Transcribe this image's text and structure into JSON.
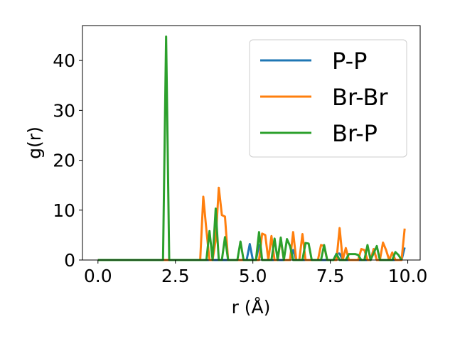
{
  "chart_data": {
    "type": "line",
    "xlabel": "r (Å)",
    "ylabel": "g(r)",
    "xlim": [
      -0.5,
      10.4
    ],
    "ylim": [
      0,
      47
    ],
    "xticks": [
      0.0,
      2.5,
      5.0,
      7.5,
      10.0
    ],
    "xtick_labels": [
      "0.0",
      "2.5",
      "5.0",
      "7.5",
      "10.0"
    ],
    "yticks": [
      0,
      10,
      20,
      30,
      40
    ],
    "ytick_labels": [
      "0",
      "10",
      "20",
      "30",
      "40"
    ],
    "grid": false,
    "legend_position": "top-right",
    "x_step": 0.1,
    "series": [
      {
        "name": "P-P",
        "color": "#1f77b4",
        "points": [
          [
            0.0,
            0
          ],
          [
            4.7,
            0
          ],
          [
            4.8,
            0
          ],
          [
            4.9,
            3.2
          ],
          [
            5.0,
            0
          ],
          [
            5.1,
            0
          ],
          [
            5.2,
            3.0
          ],
          [
            5.3,
            0
          ],
          [
            6.2,
            0
          ],
          [
            6.3,
            2.0
          ],
          [
            6.4,
            0
          ],
          [
            7.6,
            0
          ],
          [
            7.7,
            1.3
          ],
          [
            7.8,
            1.3
          ],
          [
            7.9,
            0
          ],
          [
            8.8,
            0
          ],
          [
            8.9,
            2.2
          ],
          [
            9.0,
            0
          ],
          [
            9.8,
            0
          ],
          [
            9.9,
            2.5
          ]
        ]
      },
      {
        "name": "Br-Br",
        "color": "#ff7f0e",
        "points": [
          [
            0.0,
            0
          ],
          [
            3.3,
            0
          ],
          [
            3.4,
            12.7
          ],
          [
            3.5,
            6.0
          ],
          [
            3.6,
            0
          ],
          [
            3.7,
            0
          ],
          [
            3.8,
            4.0
          ],
          [
            3.9,
            14.5
          ],
          [
            4.0,
            9.0
          ],
          [
            4.1,
            8.7
          ],
          [
            4.2,
            0
          ],
          [
            5.2,
            0
          ],
          [
            5.3,
            5.3
          ],
          [
            5.4,
            5.0
          ],
          [
            5.5,
            0
          ],
          [
            5.6,
            4.8
          ],
          [
            5.7,
            0
          ],
          [
            5.8,
            0
          ],
          [
            5.9,
            4.2
          ],
          [
            6.0,
            0
          ],
          [
            6.2,
            0
          ],
          [
            6.3,
            5.6
          ],
          [
            6.4,
            0
          ],
          [
            6.5,
            0
          ],
          [
            6.6,
            5.2
          ],
          [
            6.7,
            0
          ],
          [
            7.1,
            0
          ],
          [
            7.2,
            3.0
          ],
          [
            7.3,
            2.8
          ],
          [
            7.4,
            0
          ],
          [
            7.7,
            0
          ],
          [
            7.8,
            6.4
          ],
          [
            7.9,
            0
          ],
          [
            8.0,
            2.4
          ],
          [
            8.1,
            0
          ],
          [
            8.4,
            0
          ],
          [
            8.5,
            2.2
          ],
          [
            8.6,
            2.0
          ],
          [
            8.7,
            0
          ],
          [
            8.8,
            0
          ],
          [
            8.9,
            2.2
          ],
          [
            9.0,
            0
          ],
          [
            9.1,
            0
          ],
          [
            9.2,
            3.5
          ],
          [
            9.3,
            2.0
          ],
          [
            9.4,
            0
          ],
          [
            9.5,
            1.5
          ],
          [
            9.6,
            0
          ],
          [
            9.8,
            0
          ],
          [
            9.9,
            6.3
          ]
        ]
      },
      {
        "name": "Br-P",
        "color": "#2ca02c",
        "points": [
          [
            0.0,
            0
          ],
          [
            2.1,
            0
          ],
          [
            2.2,
            44.8
          ],
          [
            2.3,
            0
          ],
          [
            3.5,
            0
          ],
          [
            3.6,
            5.8
          ],
          [
            3.7,
            0
          ],
          [
            3.8,
            10.3
          ],
          [
            3.9,
            0
          ],
          [
            4.0,
            0
          ],
          [
            4.1,
            4.6
          ],
          [
            4.2,
            0
          ],
          [
            4.5,
            0
          ],
          [
            4.6,
            3.7
          ],
          [
            4.7,
            0
          ],
          [
            5.1,
            0
          ],
          [
            5.2,
            5.6
          ],
          [
            5.3,
            0
          ],
          [
            5.6,
            0
          ],
          [
            5.7,
            4.3
          ],
          [
            5.8,
            0
          ],
          [
            5.9,
            4.5
          ],
          [
            6.0,
            0
          ],
          [
            6.1,
            4.2
          ],
          [
            6.2,
            2.8
          ],
          [
            6.3,
            0
          ],
          [
            6.6,
            0
          ],
          [
            6.7,
            3.4
          ],
          [
            6.8,
            3.3
          ],
          [
            6.9,
            0
          ],
          [
            7.2,
            0
          ],
          [
            7.3,
            3.0
          ],
          [
            7.4,
            0
          ],
          [
            7.6,
            0
          ],
          [
            7.7,
            1.2
          ],
          [
            7.8,
            0
          ],
          [
            8.0,
            0
          ],
          [
            8.1,
            1.2
          ],
          [
            8.2,
            1.2
          ],
          [
            8.3,
            1.2
          ],
          [
            8.4,
            1.0
          ],
          [
            8.5,
            0
          ],
          [
            8.6,
            0
          ],
          [
            8.7,
            3.0
          ],
          [
            8.8,
            0
          ],
          [
            9.0,
            2.8
          ],
          [
            9.1,
            0
          ],
          [
            9.5,
            0
          ],
          [
            9.6,
            1.6
          ],
          [
            9.7,
            1.0
          ],
          [
            9.8,
            0
          ]
        ]
      }
    ]
  }
}
